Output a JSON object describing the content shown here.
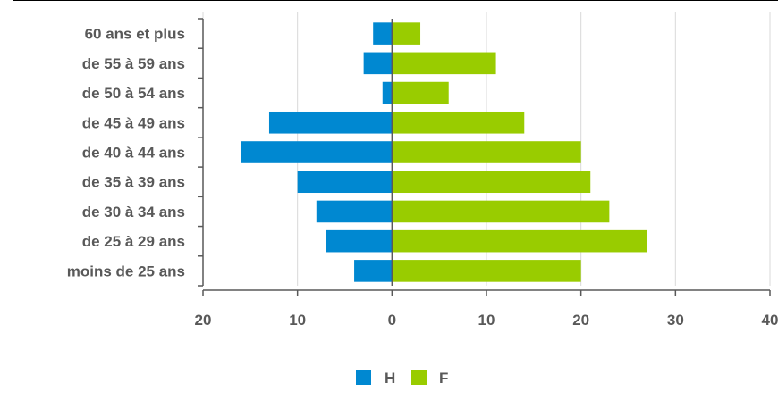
{
  "chart_data": {
    "type": "bar",
    "orientation": "horizontal",
    "layout": "population-pyramid",
    "categories": [
      "60 ans et plus",
      "de 55 à 59 ans",
      "de 50 à 54 ans",
      "de 45 à 49 ans",
      "de 40 à 44 ans",
      "de 35 à 39 ans",
      "de 30 à 34 ans",
      "de 25 à 29 ans",
      "moins de 25 ans"
    ],
    "series": [
      {
        "name": "H",
        "color": "#0088d1",
        "values": [
          2,
          3,
          1,
          13,
          16,
          10,
          8,
          7,
          4
        ]
      },
      {
        "name": "F",
        "color": "#99cc00",
        "values": [
          3,
          11,
          6,
          14,
          20,
          21,
          23,
          27,
          20
        ]
      }
    ],
    "xlim": [
      -20,
      40
    ],
    "xticks": [
      -20,
      -10,
      0,
      10,
      20,
      30,
      40
    ],
    "xtick_labels": [
      "20",
      "10",
      "0",
      "10",
      "20",
      "30",
      "40"
    ],
    "grid": true,
    "legend_position": "bottom"
  }
}
